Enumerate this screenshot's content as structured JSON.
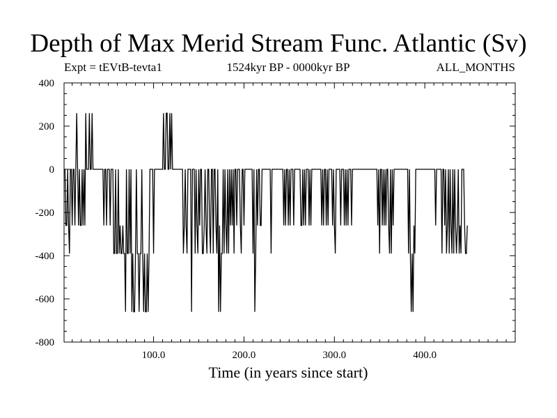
{
  "header": {
    "title": "Depth of Max Merid Stream Func. Atlantic (Sv)",
    "expt": "Expt = tEVtB-tevta1",
    "period": "1524kyr BP - 0000kyr BP",
    "months": "ALL_MONTHS"
  },
  "chart_data": {
    "type": "line",
    "title": "Depth of Max Merid Stream Func. Atlantic (Sv)",
    "xlabel": "Time (in years since start)",
    "ylabel": "",
    "xlim": [
      1,
      500
    ],
    "ylim": [
      -800,
      400
    ],
    "x_ticks": [
      100,
      200,
      300,
      400
    ],
    "x_tick_labels": [
      "100.0",
      "200.0",
      "300.0",
      "400.0"
    ],
    "y_ticks": [
      -800,
      -600,
      -400,
      -200,
      0,
      200,
      400
    ],
    "y_tick_labels": [
      "-800",
      "-600",
      "-400",
      "-200",
      "0",
      "200",
      "400"
    ],
    "line_color": "#000000",
    "series": [
      {
        "name": "depth",
        "x_start": 1,
        "x_step": 1,
        "values": [
          0,
          0,
          -260,
          -260,
          0,
          -260,
          -390,
          0,
          0,
          -260,
          0,
          0,
          -260,
          0,
          260,
          0,
          -260,
          0,
          -260,
          -260,
          0,
          -260,
          0,
          -260,
          260,
          0,
          0,
          0,
          260,
          0,
          0,
          260,
          0,
          0,
          0,
          0,
          0,
          0,
          0,
          0,
          0,
          0,
          0,
          0,
          -260,
          0,
          0,
          -260,
          0,
          0,
          0,
          -260,
          0,
          0,
          0,
          -390,
          -390,
          0,
          -390,
          -390,
          0,
          -390,
          -260,
          -390,
          -390,
          -260,
          -390,
          -390,
          -660,
          0,
          -390,
          -390,
          0,
          -390,
          0,
          -660,
          -390,
          -660,
          -660,
          -390,
          0,
          -390,
          -390,
          -660,
          -390,
          -390,
          0,
          -390,
          -660,
          -390,
          -660,
          -660,
          -390,
          -660,
          -390,
          0,
          0,
          0,
          0,
          -390,
          0,
          0,
          0,
          0,
          0,
          0,
          0,
          0,
          0,
          0,
          260,
          0,
          0,
          260,
          260,
          0,
          0,
          260,
          0,
          260,
          0,
          0,
          0,
          0,
          0,
          0,
          0,
          0,
          0,
          0,
          0,
          0,
          -390,
          -260,
          0,
          -260,
          -390,
          0,
          0,
          0,
          0,
          -660,
          0,
          0,
          0,
          -390,
          0,
          -260,
          -390,
          0,
          -260,
          0,
          0,
          -390,
          -390,
          -260,
          0,
          -260,
          -390,
          0,
          0,
          -260,
          -390,
          0,
          0,
          -390,
          0,
          0,
          -260,
          -390,
          0,
          -660,
          -260,
          -660,
          -390,
          -390,
          0,
          -390,
          0,
          -260,
          -390,
          0,
          -390,
          0,
          -260,
          0,
          -260,
          0,
          -390,
          0,
          0,
          -260,
          0,
          0,
          0,
          -260,
          -390,
          0,
          0,
          -260,
          0,
          0,
          0,
          0,
          0,
          0,
          0,
          0,
          0,
          -390,
          0,
          -660,
          -390,
          0,
          -260,
          0,
          0,
          -260,
          -260,
          0,
          0,
          0,
          0,
          0,
          0,
          0,
          0,
          0,
          0,
          -390,
          0,
          0,
          0,
          0,
          0,
          0,
          0,
          0,
          0,
          0,
          0,
          0,
          0,
          -260,
          0,
          -260,
          0,
          0,
          -260,
          0,
          -260,
          0,
          0,
          0,
          -260,
          0,
          0,
          0,
          0,
          0,
          0,
          0,
          -260,
          -260,
          0,
          -260,
          0,
          -260,
          0,
          0,
          0,
          -260,
          0,
          -260,
          0,
          0,
          0,
          0,
          0,
          0,
          0,
          0,
          0,
          0,
          0,
          -260,
          0,
          -260,
          0,
          0,
          -260,
          0,
          -260,
          0,
          0,
          0,
          0,
          -260,
          0,
          -260,
          -390,
          0,
          0,
          0,
          0,
          0,
          -260,
          0,
          0,
          0,
          -260,
          0,
          -260,
          0,
          -260,
          0,
          0,
          0,
          -260,
          0,
          0,
          0,
          0,
          0,
          0,
          0,
          0,
          0,
          0,
          0,
          0,
          0,
          0,
          0,
          0,
          0,
          0,
          0,
          0,
          0,
          0,
          0,
          0,
          0,
          0,
          0,
          0,
          -260,
          0,
          -390,
          0,
          0,
          -260,
          0,
          -260,
          0,
          -260,
          0,
          0,
          -260,
          -390,
          0,
          -390,
          0,
          -260,
          0,
          0,
          0,
          0,
          0,
          0,
          0,
          0,
          0,
          0,
          0,
          0,
          0,
          0,
          0,
          0,
          -390,
          0,
          -390,
          -660,
          -390,
          -660,
          -260,
          -390,
          0,
          0,
          0,
          0,
          0,
          0,
          0,
          0,
          0,
          0,
          0,
          0,
          0,
          0,
          0,
          0,
          0,
          0,
          0,
          0,
          0,
          0,
          -260,
          0,
          0,
          0,
          0,
          0,
          0,
          -390,
          0,
          0,
          -260,
          0,
          -390,
          -260,
          0,
          -390,
          0,
          -260,
          -390,
          0,
          -390,
          0,
          -260,
          -390,
          -260,
          0,
          -390,
          -260,
          -390,
          0,
          0,
          0,
          -260,
          -390,
          -390,
          -260
        ]
      }
    ]
  }
}
